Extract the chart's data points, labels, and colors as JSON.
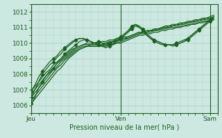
{
  "background_color": "#cde8e0",
  "grid_color": "#a8cfc8",
  "line_color": "#1a6020",
  "marker_color": "#1a6020",
  "tick_label_color": "#1a6020",
  "xlabel": "Pression niveau de la mer( hPa )",
  "xlabel_color": "#1a6020",
  "ylim": [
    1005.5,
    1012.5
  ],
  "yticks": [
    1006,
    1007,
    1008,
    1009,
    1010,
    1011,
    1012
  ],
  "xtick_labels": [
    "Jeu",
    "Ven",
    "Sam"
  ],
  "xtick_positions": [
    0,
    24,
    48
  ],
  "xlim": [
    0,
    50
  ],
  "series": [
    {
      "y": [
        1006.1,
        1006.5,
        1007.1,
        1007.5,
        1007.9,
        1008.2,
        1008.4,
        1008.7,
        1009.0,
        1009.3,
        1009.5,
        1009.7,
        1009.9,
        1010.1,
        1010.2,
        1010.2,
        1010.1,
        1010.0,
        1010.1,
        1010.0,
        1009.9,
        1010.0,
        1010.1,
        1010.3,
        1010.4,
        1010.6,
        1010.8,
        1011.1,
        1011.2,
        1011.0,
        1010.8,
        1010.5,
        1010.3,
        1010.1,
        1010.0,
        1009.9,
        1009.9,
        1009.9,
        1009.9,
        1010.0,
        1010.1,
        1010.2,
        1010.3,
        1010.5,
        1010.7,
        1010.9,
        1011.1,
        1011.3,
        1011.5,
        1011.6
      ],
      "marker": true
    },
    {
      "y": [
        1006.5,
        1007.0,
        1007.5,
        1008.0,
        1008.3,
        1008.6,
        1008.8,
        1009.1,
        1009.3,
        1009.6,
        1009.8,
        1010.0,
        1010.2,
        1010.3,
        1010.3,
        1010.2,
        1010.1,
        1010.0,
        1009.9,
        1009.8,
        1009.7,
        1009.8,
        1009.9,
        1010.1,
        1010.3,
        1010.5,
        1010.7,
        1011.0,
        1011.2,
        1011.1,
        1010.9,
        1010.6,
        1010.4,
        1010.2,
        1010.1,
        1010.0,
        1009.9,
        1009.9,
        1009.9,
        1009.9,
        1010.0,
        1010.1,
        1010.3,
        1010.5,
        1010.7,
        1010.9,
        1011.1,
        1011.3,
        1011.5,
        1011.7
      ],
      "marker": true
    },
    {
      "y": [
        1006.9,
        1007.3,
        1007.8,
        1008.2,
        1008.5,
        1008.8,
        1009.0,
        1009.2,
        1009.5,
        1009.7,
        1009.9,
        1010.1,
        1010.2,
        1010.3,
        1010.3,
        1010.2,
        1010.1,
        1010.0,
        1009.9,
        1009.9,
        1009.8,
        1009.9,
        1010.0,
        1010.2,
        1010.3,
        1010.5,
        1010.7,
        1010.9,
        1011.1,
        1011.0,
        1010.8,
        1010.5,
        1010.3,
        1010.2,
        1010.1,
        1010.0,
        1009.9,
        1009.9,
        1009.8,
        1009.9,
        1010.0,
        1010.1,
        1010.2,
        1010.4,
        1010.6,
        1010.8,
        1011.0,
        1011.2,
        1011.4,
        1011.6
      ],
      "marker": true
    },
    {
      "y": [
        1006.1,
        1006.4,
        1006.7,
        1007.0,
        1007.3,
        1007.6,
        1007.9,
        1008.2,
        1008.4,
        1008.7,
        1009.0,
        1009.2,
        1009.4,
        1009.6,
        1009.7,
        1009.8,
        1009.8,
        1009.8,
        1009.8,
        1009.8,
        1009.8,
        1009.9,
        1009.9,
        1010.0,
        1010.0,
        1010.1,
        1010.2,
        1010.3,
        1010.4,
        1010.5,
        1010.5,
        1010.6,
        1010.6,
        1010.7,
        1010.7,
        1010.8,
        1010.8,
        1010.9,
        1010.9,
        1011.0,
        1011.0,
        1011.1,
        1011.1,
        1011.2,
        1011.2,
        1011.3,
        1011.3,
        1011.4,
        1011.4,
        1011.5
      ],
      "marker": false
    },
    {
      "y": [
        1006.3,
        1006.6,
        1006.9,
        1007.2,
        1007.5,
        1007.8,
        1008.1,
        1008.4,
        1008.6,
        1008.9,
        1009.1,
        1009.3,
        1009.5,
        1009.6,
        1009.7,
        1009.8,
        1009.8,
        1009.8,
        1009.8,
        1009.9,
        1009.9,
        1009.9,
        1010.0,
        1010.0,
        1010.1,
        1010.2,
        1010.3,
        1010.4,
        1010.5,
        1010.6,
        1010.6,
        1010.7,
        1010.7,
        1010.8,
        1010.8,
        1010.9,
        1010.9,
        1011.0,
        1011.0,
        1011.0,
        1011.1,
        1011.1,
        1011.2,
        1011.2,
        1011.3,
        1011.3,
        1011.4,
        1011.4,
        1011.5,
        1011.5
      ],
      "marker": false
    },
    {
      "y": [
        1006.5,
        1006.8,
        1007.1,
        1007.4,
        1007.7,
        1008.0,
        1008.3,
        1008.5,
        1008.8,
        1009.0,
        1009.2,
        1009.4,
        1009.6,
        1009.7,
        1009.8,
        1009.8,
        1009.9,
        1009.9,
        1009.9,
        1009.9,
        1010.0,
        1010.0,
        1010.1,
        1010.1,
        1010.2,
        1010.3,
        1010.3,
        1010.4,
        1010.5,
        1010.6,
        1010.7,
        1010.7,
        1010.8,
        1010.8,
        1010.9,
        1010.9,
        1011.0,
        1011.0,
        1011.1,
        1011.1,
        1011.2,
        1011.2,
        1011.3,
        1011.3,
        1011.4,
        1011.4,
        1011.5,
        1011.5,
        1011.6,
        1011.6
      ],
      "marker": false
    },
    {
      "y": [
        1006.7,
        1007.0,
        1007.3,
        1007.6,
        1007.9,
        1008.1,
        1008.4,
        1008.7,
        1008.9,
        1009.1,
        1009.3,
        1009.5,
        1009.7,
        1009.8,
        1009.9,
        1009.9,
        1009.9,
        1010.0,
        1010.0,
        1010.0,
        1010.0,
        1010.1,
        1010.1,
        1010.2,
        1010.2,
        1010.3,
        1010.4,
        1010.5,
        1010.6,
        1010.7,
        1010.7,
        1010.8,
        1010.8,
        1010.9,
        1010.9,
        1011.0,
        1011.0,
        1011.1,
        1011.1,
        1011.2,
        1011.2,
        1011.3,
        1011.3,
        1011.4,
        1011.4,
        1011.5,
        1011.5,
        1011.6,
        1011.6,
        1011.7
      ],
      "marker": false
    },
    {
      "y": [
        1006.9,
        1007.2,
        1007.5,
        1007.8,
        1008.1,
        1008.3,
        1008.6,
        1008.8,
        1009.0,
        1009.2,
        1009.4,
        1009.6,
        1009.7,
        1009.8,
        1009.9,
        1010.0,
        1010.0,
        1010.0,
        1010.0,
        1010.1,
        1010.1,
        1010.2,
        1010.2,
        1010.3,
        1010.3,
        1010.4,
        1010.4,
        1010.5,
        1010.6,
        1010.7,
        1010.7,
        1010.8,
        1010.8,
        1010.9,
        1010.9,
        1011.0,
        1011.1,
        1011.1,
        1011.2,
        1011.2,
        1011.3,
        1011.3,
        1011.4,
        1011.4,
        1011.5,
        1011.5,
        1011.6,
        1011.6,
        1011.7,
        1011.8
      ],
      "marker": false
    }
  ],
  "marker_step": 3
}
